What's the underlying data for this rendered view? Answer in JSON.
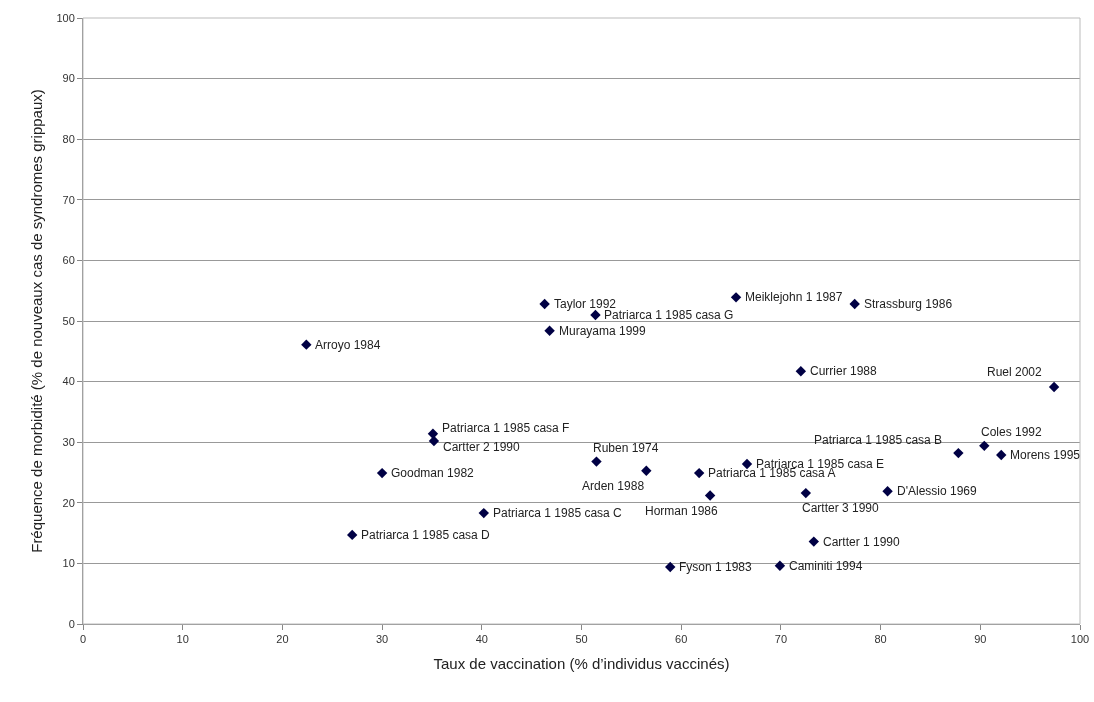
{
  "chart_data": {
    "type": "scatter",
    "xlabel": "Taux de vaccination (% d’individus vaccinés)",
    "ylabel": "Fréquence de morbidité (% de nouveaux cas de syndromes grippaux)",
    "x": [
      22.4,
      46.3,
      51.4,
      46.8,
      35.1,
      35.2,
      51.5,
      56.5,
      30.0,
      65.5,
      77.4,
      72.0,
      97.4,
      87.8,
      90.4,
      92.1,
      66.6,
      61.8,
      40.2,
      27.0,
      58.9,
      62.9,
      72.5,
      80.7,
      73.3,
      69.9
    ],
    "values": [
      46.1,
      52.8,
      51.0,
      48.4,
      31.4,
      30.2,
      26.8,
      25.3,
      24.9,
      53.9,
      52.8,
      41.7,
      39.1,
      28.2,
      29.4,
      27.9,
      26.4,
      24.9,
      18.3,
      14.7,
      9.4,
      21.2,
      21.6,
      21.9,
      13.6,
      9.6
    ],
    "color": "#000044",
    "marker": "diamond",
    "grid": "y",
    "legend": false,
    "xlim": [
      0,
      100
    ],
    "xticks": [
      0,
      10,
      20,
      30,
      40,
      50,
      60,
      70,
      80,
      90,
      100
    ],
    "ylim": [
      0,
      100
    ],
    "yticks": [
      0,
      10,
      20,
      30,
      40,
      50,
      60,
      70,
      80,
      90,
      100
    ],
    "annotations": [
      {
        "text": "Arroyo 1984",
        "x": 22.4,
        "y": 46.1
      },
      {
        "text": "Taylor 1992",
        "x": 46.3,
        "y": 52.8
      },
      {
        "text": "Patriarca 1 1985 casa G",
        "x": 51.4,
        "y": 51.0
      },
      {
        "text": "Murayama 1999",
        "x": 46.8,
        "y": 48.4
      },
      {
        "text": "Patriarca 1 1985 casa F",
        "x": 35.1,
        "y": 31.4
      },
      {
        "text": "Cartter 2 1990",
        "x": 35.2,
        "y": 30.2
      },
      {
        "text": "Ruben 1974",
        "x": 51.5,
        "y": 26.8
      },
      {
        "text": "Arden 1988",
        "x": 56.5,
        "y": 25.3
      },
      {
        "text": "Goodman 1982",
        "x": 30.0,
        "y": 24.9
      },
      {
        "text": "Meiklejohn 1 1987",
        "x": 65.5,
        "y": 53.9
      },
      {
        "text": "Strassburg 1986",
        "x": 77.4,
        "y": 52.8
      },
      {
        "text": "Currier 1988",
        "x": 72.0,
        "y": 41.7
      },
      {
        "text": "Ruel 2002",
        "x": 97.4,
        "y": 39.1
      },
      {
        "text": "Patriarca 1 1985 casa B",
        "x": 87.8,
        "y": 28.2
      },
      {
        "text": "Coles 1992",
        "x": 90.4,
        "y": 29.4
      },
      {
        "text": "Morens 1995",
        "x": 92.1,
        "y": 27.9
      },
      {
        "text": "Patriarca 1 1985 casa E",
        "x": 66.6,
        "y": 26.4
      },
      {
        "text": "Patriarca 1 1985 casa A",
        "x": 61.8,
        "y": 24.9
      },
      {
        "text": "Patriarca 1 1985 casa C",
        "x": 40.2,
        "y": 18.3
      },
      {
        "text": "Patriarca 1 1985 casa D",
        "x": 27.0,
        "y": 14.7
      },
      {
        "text": "Fyson 1 1983",
        "x": 58.9,
        "y": 9.4
      },
      {
        "text": "Horman 1986",
        "x": 62.9,
        "y": 21.2
      },
      {
        "text": "Cartter 3 1990",
        "x": 72.5,
        "y": 21.6
      },
      {
        "text": "D'Alessio 1969",
        "x": 80.7,
        "y": 21.9
      },
      {
        "text": "Cartter 1 1990",
        "x": 73.3,
        "y": 13.6
      },
      {
        "text": "Caminiti 1994",
        "x": 69.9,
        "y": 9.6
      }
    ]
  }
}
